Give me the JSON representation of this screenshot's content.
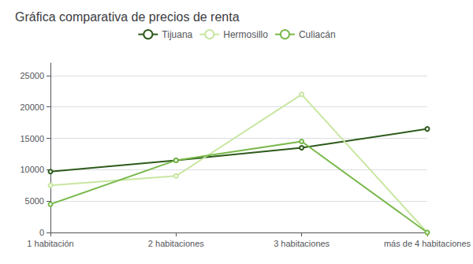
{
  "chart_data": {
    "type": "line",
    "title": "Gráfica comparativa de precios de renta",
    "categories": [
      "1 habitación",
      "2 habitaciones",
      "3 habitaciones",
      "más de 4 habitaciones"
    ],
    "series": [
      {
        "name": "Tijuana",
        "color": "#2d5a1b",
        "values": [
          9700,
          11500,
          13500,
          16500
        ]
      },
      {
        "name": "Hermosillo",
        "color": "#c8e6a0",
        "values": [
          7500,
          9000,
          22000,
          0
        ]
      },
      {
        "name": "Culiacán",
        "color": "#78b84a",
        "values": [
          4500,
          11500,
          14500,
          0
        ]
      }
    ],
    "ylim": [
      0,
      27000
    ],
    "yticks": [
      0,
      5000,
      10000,
      15000,
      20000,
      25000
    ],
    "grid": true,
    "legend": "top"
  }
}
